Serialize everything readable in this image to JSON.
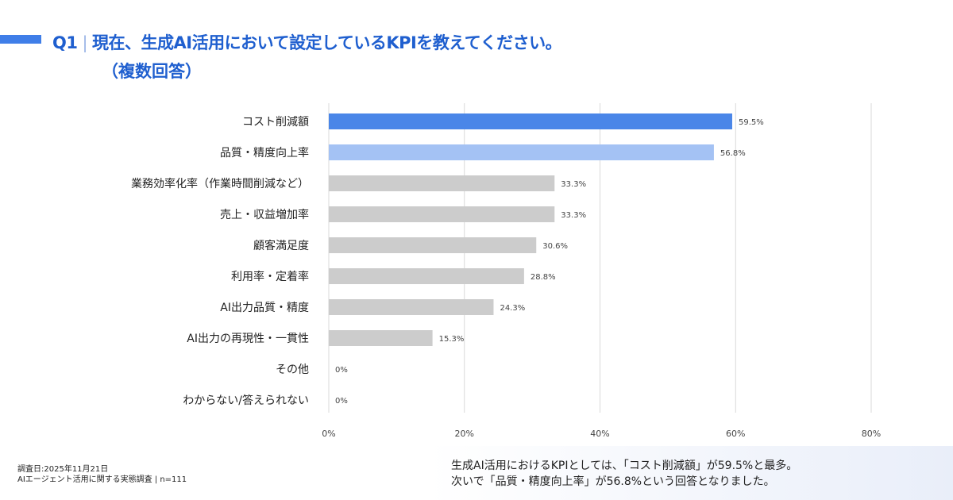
{
  "header": {
    "question": "Q1",
    "title": "現在、生成AI活用において設定しているKPIを教えてください。",
    "subtitle": "（複数回答）"
  },
  "chart_data": {
    "type": "bar",
    "orientation": "horizontal",
    "categories": [
      "コスト削減額",
      "品質・精度向上率",
      "業務効率化率（作業時間削減など）",
      "売上・収益増加率",
      "顧客満足度",
      "利用率・定着率",
      "AI出力品質・精度",
      "AI出力の再現性・一貫性",
      "その他",
      "わからない/答えられない"
    ],
    "values": [
      59.5,
      56.8,
      33.3,
      33.3,
      30.6,
      28.8,
      24.3,
      15.3,
      0,
      0
    ],
    "value_labels": [
      "59.5%",
      "56.8%",
      "33.3%",
      "33.3%",
      "30.6%",
      "28.8%",
      "24.3%",
      "15.3%",
      "0%",
      "0%"
    ],
    "colors": [
      "#4a86e8",
      "#a4c2f4",
      "#cccccc",
      "#cccccc",
      "#cccccc",
      "#cccccc",
      "#cccccc",
      "#cccccc",
      "#cccccc",
      "#cccccc"
    ],
    "xlim": [
      0,
      80
    ],
    "xticks": [
      0,
      20,
      40,
      60,
      80
    ],
    "xtick_labels": [
      "0%",
      "20%",
      "40%",
      "60%",
      "80%"
    ],
    "grid": true
  },
  "footer": {
    "date": "調査日:2025年11月21日",
    "source": "AIエージェント活用に関する実態調査 | n=111",
    "summary_line1": "生成AI活用におけるKPIとしては、「コスト削減額」が59.5%と最多。",
    "summary_line2": "次いで「品質・精度向上率」が56.8%という回答となりました。"
  }
}
